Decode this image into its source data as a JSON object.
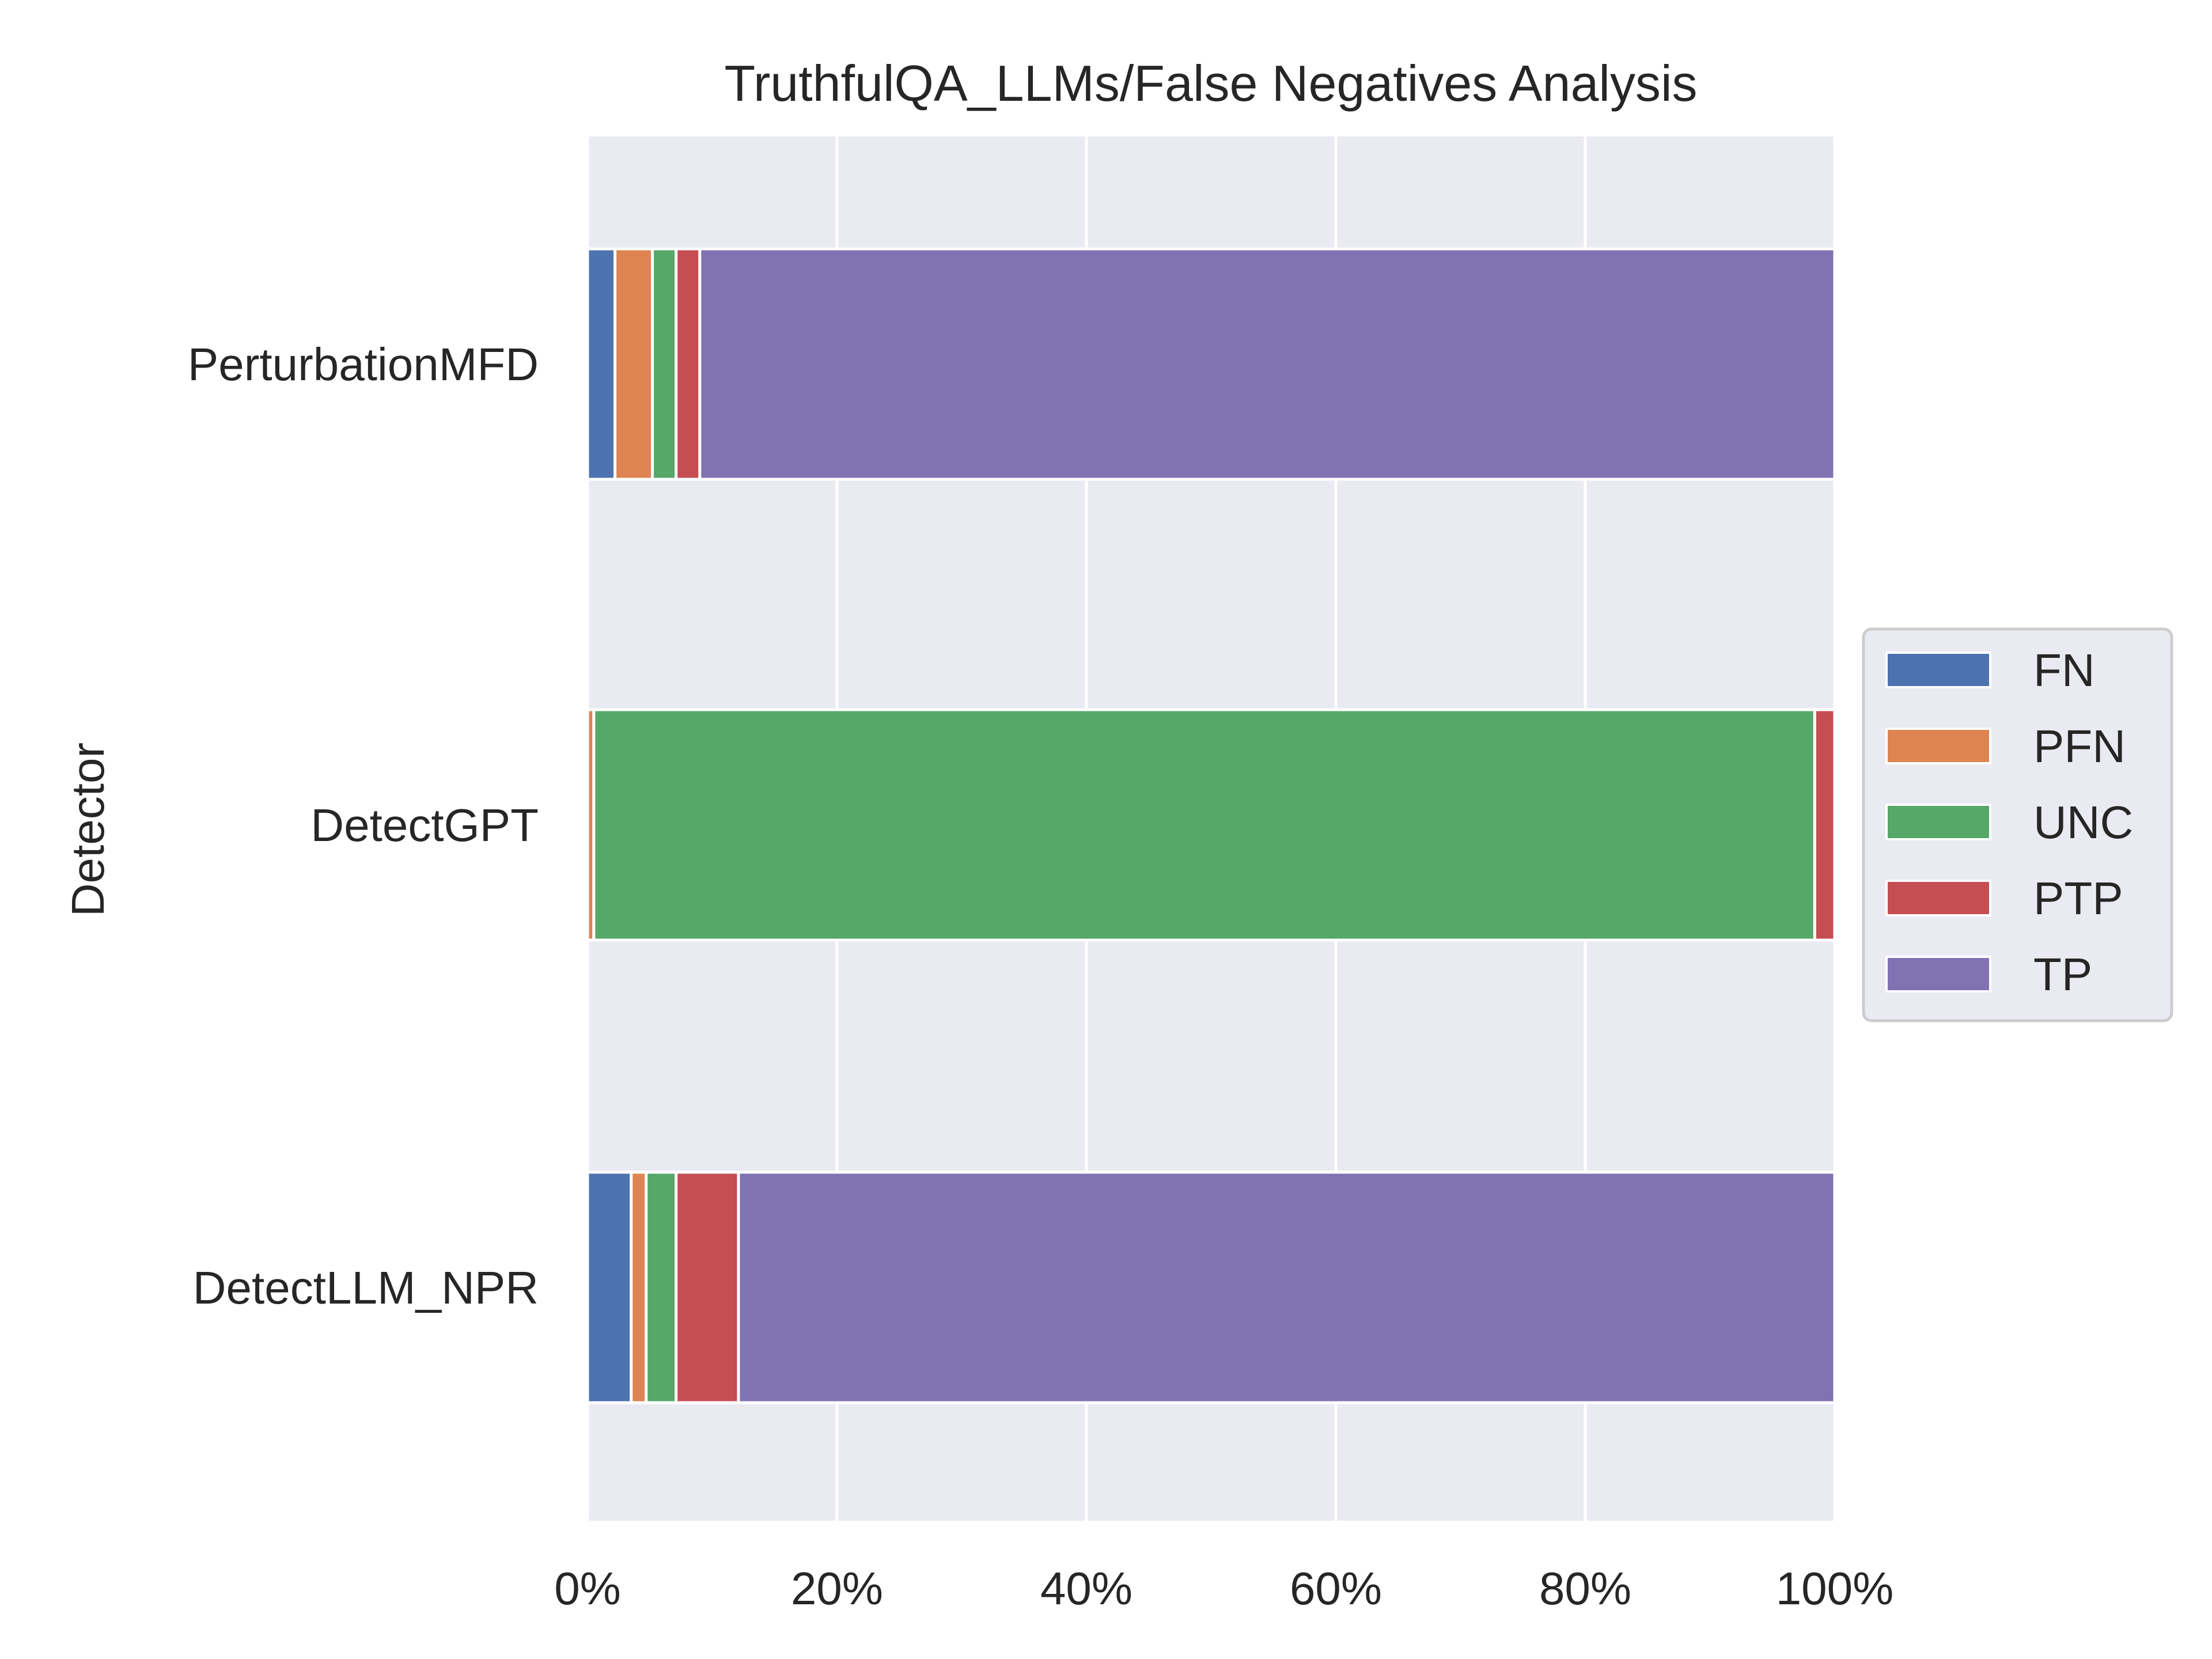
{
  "chart_data": {
    "type": "bar",
    "orientation": "horizontal",
    "stacked": true,
    "title": "TruthfulQA_LLMs/False Negatives Analysis",
    "xlabel": "",
    "ylabel": "Detector",
    "xlim": [
      0,
      100
    ],
    "x_ticks": [
      "0%",
      "20%",
      "40%",
      "60%",
      "80%",
      "100%"
    ],
    "x_tick_values": [
      0,
      20,
      40,
      60,
      80,
      100
    ],
    "grid": true,
    "legend_position": "center-right",
    "categories": [
      "PerturbationMFD",
      "DetectGPT",
      "DetectLLM_NPR"
    ],
    "series": [
      {
        "name": "FN",
        "color": "#4c72b0",
        "values": [
          2.2,
          0.0,
          3.5
        ]
      },
      {
        "name": "PFN",
        "color": "#dd8452",
        "values": [
          3.0,
          0.5,
          1.2
        ]
      },
      {
        "name": "UNC",
        "color": "#55a868",
        "values": [
          1.9,
          97.9,
          2.4
        ]
      },
      {
        "name": "PTP",
        "color": "#c44e52",
        "values": [
          1.9,
          1.6,
          5.0
        ]
      },
      {
        "name": "TP",
        "color": "#8172b3",
        "values": [
          91.0,
          0.0,
          87.9
        ]
      }
    ]
  },
  "style": {
    "plot_background": "#eaeaf2",
    "grid_color": "#ffffff",
    "bar_edge_color": "#ffffff"
  }
}
